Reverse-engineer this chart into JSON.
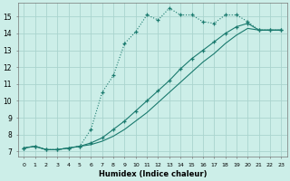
{
  "xlabel": "Humidex (Indice chaleur)",
  "bg_color": "#cceee8",
  "grid_color": "#aad4ce",
  "line_color": "#1a7a6e",
  "xlim": [
    -0.5,
    23.5
  ],
  "ylim": [
    6.7,
    15.8
  ],
  "yticks": [
    7,
    8,
    9,
    10,
    11,
    12,
    13,
    14,
    15
  ],
  "xticks": [
    0,
    1,
    2,
    3,
    4,
    5,
    6,
    7,
    8,
    9,
    10,
    11,
    12,
    13,
    14,
    15,
    16,
    17,
    18,
    19,
    20,
    21,
    22,
    23
  ],
  "series1_x": [
    0,
    1,
    2,
    3,
    4,
    5,
    6,
    7,
    8,
    9,
    10,
    11,
    12,
    13,
    14,
    15,
    16,
    17,
    18,
    19,
    20,
    21,
    22,
    23
  ],
  "series1_y": [
    7.2,
    7.3,
    7.1,
    7.1,
    7.2,
    7.3,
    8.3,
    10.5,
    11.5,
    13.4,
    14.1,
    15.1,
    14.8,
    15.5,
    15.1,
    15.1,
    14.7,
    14.6,
    15.1,
    15.1,
    14.7,
    14.2,
    14.2,
    14.2
  ],
  "series2_x": [
    0,
    1,
    2,
    3,
    4,
    5,
    6,
    7,
    8,
    9,
    10,
    11,
    12,
    13,
    14,
    15,
    16,
    17,
    18,
    19,
    20,
    21,
    22,
    23
  ],
  "series2_y": [
    7.2,
    7.3,
    7.1,
    7.1,
    7.2,
    7.3,
    7.5,
    7.8,
    8.3,
    8.8,
    9.4,
    10.0,
    10.6,
    11.2,
    11.9,
    12.5,
    13.0,
    13.5,
    14.0,
    14.4,
    14.6,
    14.2,
    14.2,
    14.2
  ],
  "series3_x": [
    0,
    1,
    2,
    3,
    4,
    5,
    6,
    7,
    8,
    9,
    10,
    11,
    12,
    13,
    14,
    15,
    16,
    17,
    18,
    19,
    20,
    21,
    22,
    23
  ],
  "series3_y": [
    7.2,
    7.3,
    7.1,
    7.1,
    7.2,
    7.3,
    7.4,
    7.6,
    7.9,
    8.3,
    8.8,
    9.3,
    9.9,
    10.5,
    11.1,
    11.7,
    12.3,
    12.8,
    13.4,
    13.9,
    14.3,
    14.2,
    14.2,
    14.2
  ]
}
